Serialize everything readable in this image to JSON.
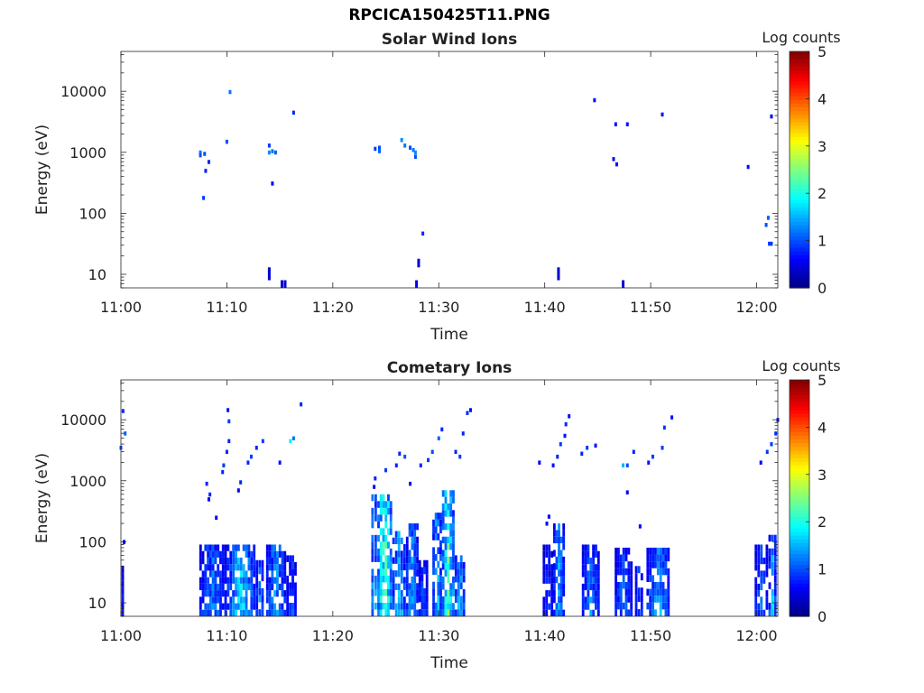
{
  "title": "RPCICA150425T11.PNG",
  "chart_data": [
    {
      "type": "heatmap",
      "title": "Solar Wind Ions",
      "xlabel": "Time",
      "ylabel": "Energy (eV)",
      "x_ticks": [
        "11:00",
        "11:10",
        "11:20",
        "11:30",
        "11:40",
        "11:50",
        "12:00"
      ],
      "x_range_minutes": [
        0,
        62
      ],
      "y_ticks": [
        "10",
        "100",
        "1000",
        "10000"
      ],
      "y_scale": "log",
      "y_range": [
        6,
        45000
      ],
      "colorbar": {
        "label": "Log counts",
        "ticks": [
          "0",
          "1",
          "2",
          "3",
          "4",
          "5"
        ],
        "range": [
          0,
          5
        ],
        "colormap": "jet"
      },
      "points": [
        [
          7.5,
          1000,
          1.2
        ],
        [
          7.5,
          900,
          1.0
        ],
        [
          7.9,
          950,
          1.0
        ],
        [
          8.0,
          500,
          0.8
        ],
        [
          8.3,
          700,
          0.8
        ],
        [
          7.8,
          180,
          0.9
        ],
        [
          10.0,
          1500,
          1.0
        ],
        [
          10.3,
          9800,
          1.2
        ],
        [
          14.0,
          1300,
          0.9
        ],
        [
          14.0,
          1000,
          1.3
        ],
        [
          14.3,
          1050,
          1.2
        ],
        [
          14.6,
          1000,
          1.1
        ],
        [
          14.3,
          310,
          0.6
        ],
        [
          16.3,
          4500,
          0.8
        ],
        [
          24.0,
          1150,
          0.9
        ],
        [
          24.4,
          1200,
          1.0
        ],
        [
          24.4,
          1050,
          1.1
        ],
        [
          26.5,
          1600,
          1.3
        ],
        [
          26.8,
          1300,
          1.2
        ],
        [
          27.3,
          1200,
          1.0
        ],
        [
          27.6,
          1100,
          1.2
        ],
        [
          27.8,
          1000,
          1.3
        ],
        [
          27.8,
          850,
          1.0
        ],
        [
          28.5,
          47,
          0.8
        ],
        [
          44.7,
          7200,
          0.7
        ],
        [
          46.7,
          2900,
          0.7
        ],
        [
          47.8,
          2900,
          0.7
        ],
        [
          46.5,
          780,
          0.7
        ],
        [
          46.8,
          640,
          0.7
        ],
        [
          51.1,
          4200,
          0.7
        ],
        [
          59.2,
          580,
          0.7
        ],
        [
          61.4,
          3900,
          0.6
        ],
        [
          61.1,
          85,
          1.1
        ],
        [
          60.9,
          65,
          1.0
        ],
        [
          61.2,
          32,
          0.9
        ],
        [
          61.4,
          32,
          0.9
        ]
      ],
      "columns": [
        [
          14.0,
          8,
          13,
          0.4
        ],
        [
          15.2,
          6,
          8,
          0.4
        ],
        [
          15.5,
          6,
          8,
          0.4
        ],
        [
          27.9,
          6,
          8,
          0.5
        ],
        [
          28.1,
          13,
          18,
          0.4
        ],
        [
          41.3,
          8,
          13,
          0.4
        ],
        [
          47.4,
          6,
          8,
          0.4
        ]
      ]
    },
    {
      "type": "heatmap",
      "title": "Cometary Ions",
      "xlabel": "Time",
      "ylabel": "Energy (eV)",
      "x_ticks": [
        "11:00",
        "11:10",
        "11:20",
        "11:30",
        "11:40",
        "11:50",
        "12:00"
      ],
      "x_range_minutes": [
        0,
        62
      ],
      "y_ticks": [
        "10",
        "100",
        "1000",
        "10000"
      ],
      "y_scale": "log",
      "y_range": [
        6,
        45000
      ],
      "colorbar": {
        "label": "Log counts",
        "ticks": [
          "0",
          "1",
          "2",
          "3",
          "4",
          "5"
        ],
        "range": [
          0,
          5
        ],
        "colormap": "jet"
      },
      "blocks": [
        [
          0.0,
          0.35,
          6,
          40,
          0.5
        ],
        [
          7.4,
          10.0,
          6,
          90,
          1.1
        ],
        [
          10.0,
          12.7,
          6,
          90,
          1.6
        ],
        [
          12.7,
          13.5,
          6,
          50,
          1.1
        ],
        [
          13.7,
          15.6,
          6,
          90,
          1.3
        ],
        [
          15.6,
          16.6,
          6,
          60,
          0.9
        ],
        [
          23.6,
          24.2,
          6,
          600,
          1.6
        ],
        [
          24.2,
          25.6,
          6,
          600,
          2.4
        ],
        [
          25.6,
          26.9,
          6,
          150,
          1.5
        ],
        [
          26.9,
          28.1,
          6,
          200,
          1.3
        ],
        [
          28.1,
          29.0,
          6,
          50,
          0.9
        ],
        [
          29.4,
          30.3,
          6,
          300,
          1.5
        ],
        [
          30.3,
          31.5,
          6,
          700,
          2.1
        ],
        [
          31.5,
          32.5,
          6,
          60,
          1.4
        ],
        [
          39.8,
          40.8,
          6,
          90,
          0.7
        ],
        [
          40.8,
          41.9,
          6,
          200,
          1.3
        ],
        [
          43.5,
          45.2,
          6,
          90,
          1.1
        ],
        [
          46.6,
          48.3,
          6,
          80,
          1.0
        ],
        [
          48.5,
          49.3,
          6,
          40,
          0.9
        ],
        [
          49.6,
          51.8,
          6,
          80,
          1.4
        ],
        [
          59.8,
          61.1,
          6,
          90,
          0.9
        ],
        [
          61.1,
          61.9,
          6,
          130,
          1.3
        ]
      ],
      "points": [
        [
          0.0,
          3500,
          1.0
        ],
        [
          0.4,
          6000,
          1.1
        ],
        [
          0.2,
          14000,
          0.8
        ],
        [
          0.3,
          100,
          0.6
        ],
        [
          8.1,
          900,
          0.8
        ],
        [
          8.4,
          600,
          0.8
        ],
        [
          9.0,
          250,
          0.6
        ],
        [
          10.1,
          14500,
          0.7
        ],
        [
          10.2,
          9500,
          0.9
        ],
        [
          10.2,
          4500,
          0.8
        ],
        [
          10.0,
          3000,
          0.8
        ],
        [
          9.7,
          1800,
          0.9
        ],
        [
          9.6,
          1400,
          0.8
        ],
        [
          11.1,
          700,
          0.6
        ],
        [
          11.3,
          950,
          0.8
        ],
        [
          12.0,
          2000,
          0.8
        ],
        [
          12.3,
          2500,
          0.9
        ],
        [
          12.8,
          3500,
          0.8
        ],
        [
          13.4,
          4500,
          0.9
        ],
        [
          15.0,
          2000,
          0.7
        ],
        [
          16.0,
          4500,
          1.8
        ],
        [
          16.3,
          5000,
          1.2
        ],
        [
          17.0,
          18000,
          0.8
        ],
        [
          23.9,
          800,
          0.6
        ],
        [
          24.0,
          1100,
          0.8
        ],
        [
          25.0,
          1500,
          0.9
        ],
        [
          26.0,
          1800,
          0.8
        ],
        [
          26.3,
          2800,
          0.8
        ],
        [
          26.8,
          2500,
          1.0
        ],
        [
          27.3,
          900,
          0.7
        ],
        [
          28.3,
          1800,
          0.8
        ],
        [
          29.0,
          2200,
          0.9
        ],
        [
          29.4,
          3000,
          1.0
        ],
        [
          30.0,
          5000,
          1.1
        ],
        [
          30.3,
          7000,
          0.8
        ],
        [
          31.6,
          3000,
          0.8
        ],
        [
          32.0,
          2500,
          0.9
        ],
        [
          32.7,
          13000,
          0.8
        ],
        [
          32.3,
          6000,
          0.8
        ],
        [
          33.0,
          14500,
          0.7
        ],
        [
          39.5,
          2000,
          0.6
        ],
        [
          40.8,
          1800,
          0.7
        ],
        [
          41.2,
          2500,
          0.8
        ],
        [
          41.5,
          4000,
          0.9
        ],
        [
          41.9,
          5500,
          0.7
        ],
        [
          42.3,
          11500,
          0.7
        ],
        [
          42.0,
          8500,
          0.8
        ],
        [
          43.5,
          2800,
          0.8
        ],
        [
          44.0,
          3500,
          0.9
        ],
        [
          44.8,
          3800,
          0.7
        ],
        [
          47.4,
          1800,
          1.5
        ],
        [
          47.8,
          1800,
          1.0
        ],
        [
          48.4,
          3000,
          0.8
        ],
        [
          49.8,
          2000,
          0.7
        ],
        [
          50.2,
          2500,
          0.9
        ],
        [
          51.1,
          3500,
          0.9
        ],
        [
          51.3,
          7500,
          0.9
        ],
        [
          52.0,
          11000,
          0.7
        ],
        [
          60.4,
          2000,
          0.6
        ],
        [
          61.0,
          3000,
          0.9
        ],
        [
          61.4,
          4000,
          0.9
        ],
        [
          61.8,
          6000,
          0.9
        ],
        [
          62.0,
          10000,
          0.7
        ],
        [
          40.2,
          200,
          0.6
        ],
        [
          40.4,
          260,
          0.6
        ],
        [
          49.0,
          180,
          0.6
        ],
        [
          47.8,
          650,
          0.6
        ],
        [
          8.3,
          500,
          0.6
        ]
      ]
    }
  ]
}
